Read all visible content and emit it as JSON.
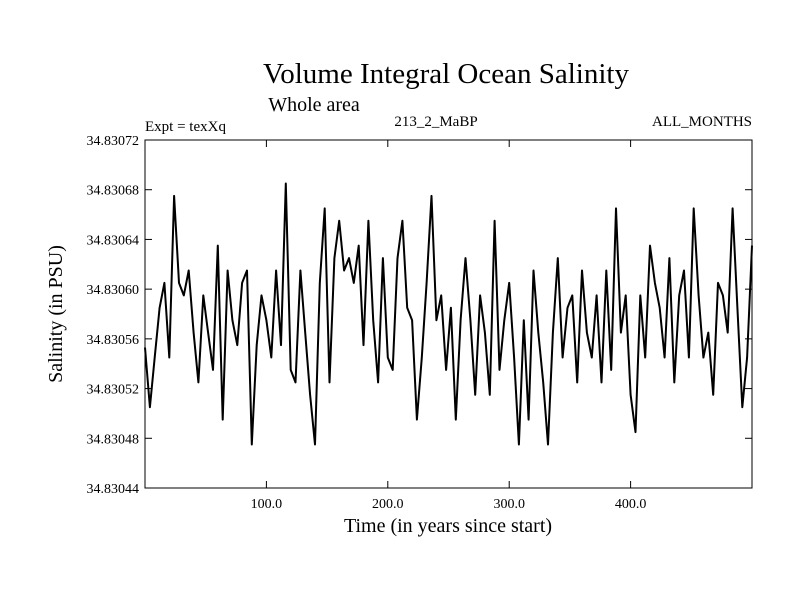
{
  "chart_data": {
    "type": "line",
    "title": "Volume Integral Ocean Salinity",
    "subtitle": "Whole area",
    "annotation_left": "Expt = texXq",
    "annotation_center": "213_2_MaBP",
    "annotation_right": "ALL_MONTHS",
    "xlabel": "Time (in years since start)",
    "ylabel": "Salinity (in PSU)",
    "xlim": [
      0,
      500
    ],
    "ylim": [
      34.83044,
      34.83072
    ],
    "x_ticks": [
      100,
      200,
      300,
      400
    ],
    "x_tick_labels": [
      "100.0",
      "200.0",
      "300.0",
      "400.0"
    ],
    "y_ticks": [
      34.83044,
      34.83048,
      34.83052,
      34.83056,
      34.8306,
      34.83064,
      34.83068,
      34.83072
    ],
    "y_tick_labels": [
      "34.83044",
      "34.83048",
      "34.83052",
      "34.83056",
      "34.83060",
      "34.83064",
      "34.83068",
      "34.83072"
    ],
    "grid": false,
    "series": [
      {
        "name": "salinity",
        "x_start": 0,
        "x_step": 4,
        "values": [
          34.830553,
          34.830505,
          34.830545,
          34.830585,
          34.830605,
          34.830545,
          34.830675,
          34.830605,
          34.830595,
          34.830615,
          34.830565,
          34.830525,
          34.830595,
          34.830565,
          34.830535,
          34.830635,
          34.830495,
          34.830615,
          34.830575,
          34.830555,
          34.830605,
          34.830615,
          34.830475,
          34.830555,
          34.830595,
          34.830575,
          34.830545,
          34.830615,
          34.830555,
          34.830685,
          34.830535,
          34.830525,
          34.830615,
          34.830565,
          34.830515,
          34.830475,
          34.830605,
          34.830665,
          34.830525,
          34.830625,
          34.830655,
          34.830615,
          34.830625,
          34.830605,
          34.830635,
          34.830555,
          34.830655,
          34.830575,
          34.830525,
          34.830625,
          34.830545,
          34.830535,
          34.830625,
          34.830655,
          34.830585,
          34.830575,
          34.830495,
          34.830545,
          34.830605,
          34.830675,
          34.830575,
          34.830595,
          34.830535,
          34.830585,
          34.830495,
          34.830575,
          34.830625,
          34.830575,
          34.830515,
          34.830595,
          34.830565,
          34.830515,
          34.830655,
          34.830535,
          34.830575,
          34.830605,
          34.830545,
          34.830475,
          34.830575,
          34.830495,
          34.830615,
          34.830565,
          34.830525,
          34.830475,
          34.830565,
          34.830625,
          34.830545,
          34.830585,
          34.830595,
          34.830525,
          34.830615,
          34.830565,
          34.830545,
          34.830595,
          34.830525,
          34.830615,
          34.830535,
          34.830665,
          34.830565,
          34.830595,
          34.830515,
          34.830485,
          34.830595,
          34.830545,
          34.830635,
          34.830605,
          34.830585,
          34.830545,
          34.830625,
          34.830525,
          34.830595,
          34.830615,
          34.830545,
          34.830665,
          34.830595,
          34.830545,
          34.830565,
          34.830515,
          34.830605,
          34.830595,
          34.830565,
          34.830665,
          34.830585,
          34.830505,
          34.830545,
          34.830635
        ]
      }
    ]
  }
}
